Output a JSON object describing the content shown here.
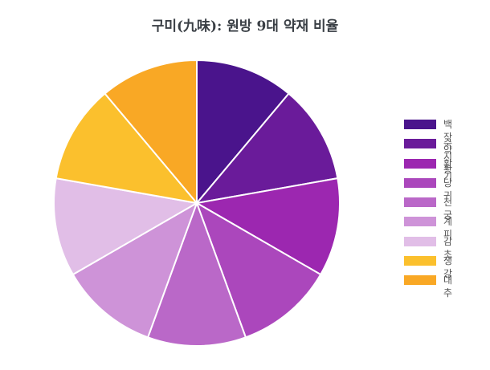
{
  "chart_data": {
    "type": "pie",
    "title": "구미(九味): 원방 9대 약재 비율",
    "categories": [
      "백작약",
      "숙지황",
      "황기",
      "당귀",
      "천궁",
      "계피",
      "감초",
      "생강",
      "대추"
    ],
    "values": [
      1,
      1,
      1,
      1,
      1,
      1,
      1,
      1,
      1
    ],
    "colors": [
      "#4a148c",
      "#6a1b9a",
      "#9c27b0",
      "#ab47bc",
      "#ba68c8",
      "#ce93d8",
      "#e1bee7",
      "#fbc02d",
      "#f9a825"
    ],
    "legend_position": "right"
  }
}
